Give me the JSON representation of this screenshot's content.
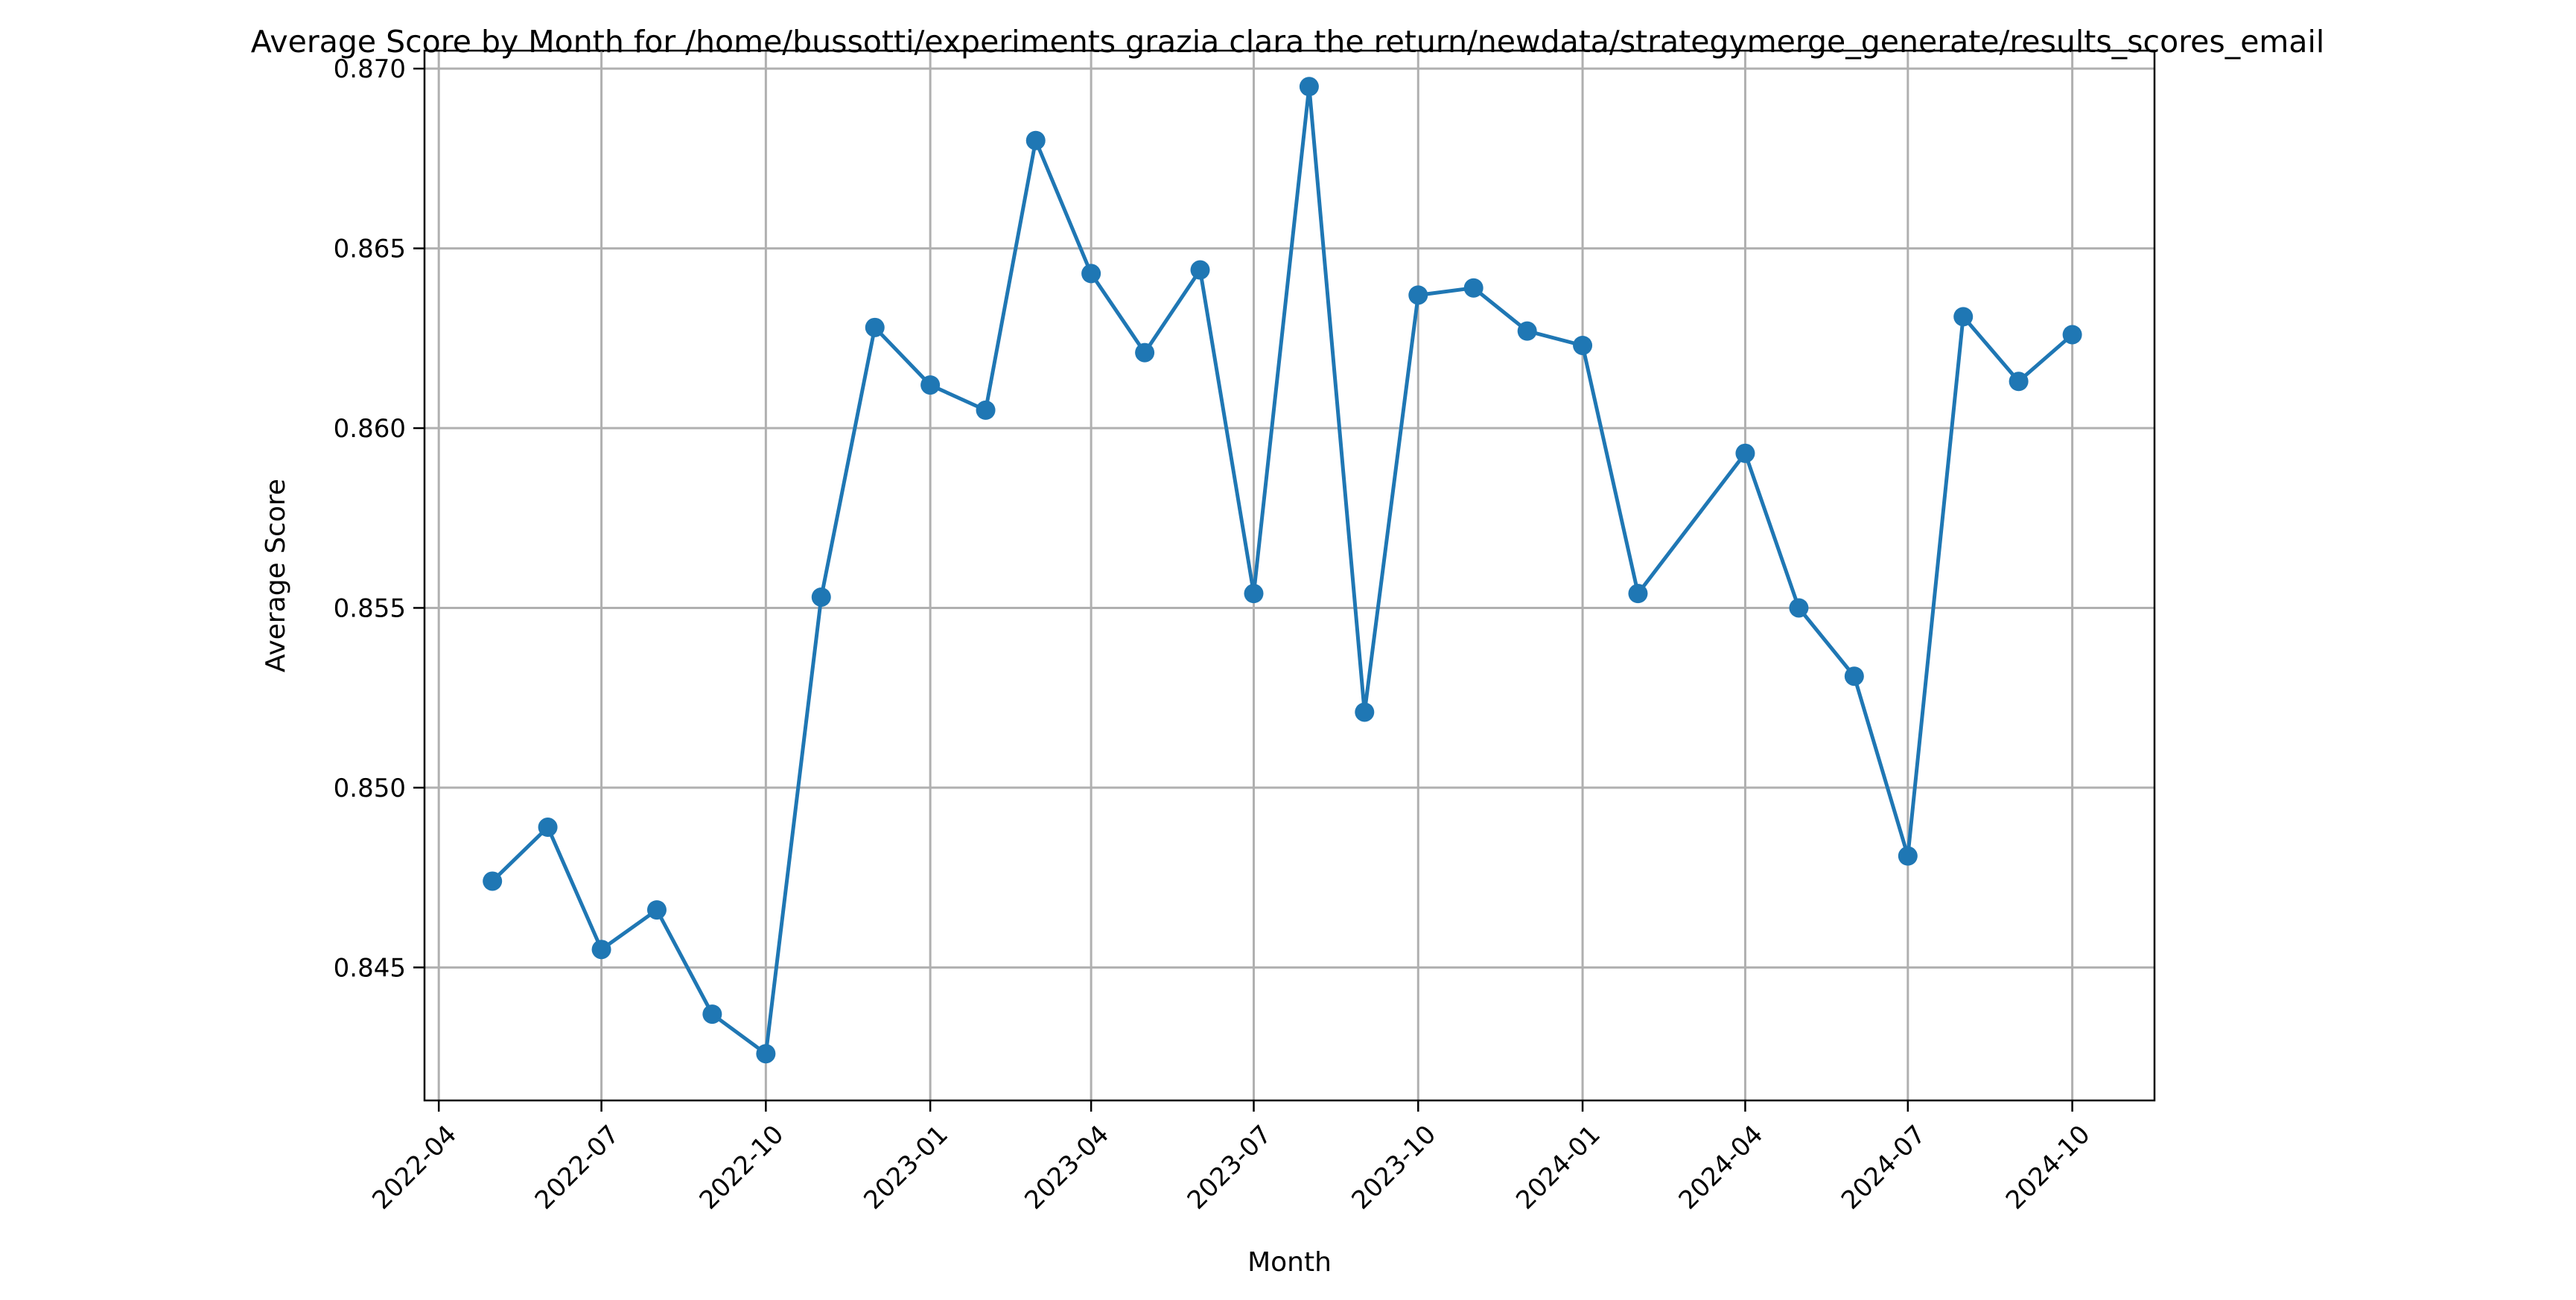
{
  "chart_data": {
    "type": "line",
    "title": "Average Score by Month for /home/bussotti/experiments grazia clara the return/newdata/strategymerge_generate/results_scores_email",
    "xlabel": "Month",
    "ylabel": "Average Score",
    "x_tick_labels": [
      "2022-04",
      "2022-07",
      "2022-10",
      "2023-01",
      "2023-04",
      "2023-07",
      "2023-10",
      "2024-01",
      "2024-04",
      "2024-07",
      "2024-10"
    ],
    "y_tick_labels": [
      "0.845",
      "0.850",
      "0.855",
      "0.860",
      "0.865",
      "0.870"
    ],
    "x_range": [
      "2022-03-24",
      "2024-11-16"
    ],
    "ylim": [
      0.8413,
      0.8705
    ],
    "grid": true,
    "marker": "circle",
    "color": "#1f77b4",
    "series": [
      {
        "x": [
          "2022-05-01",
          "2022-06-01",
          "2022-07-01",
          "2022-08-01",
          "2022-09-01",
          "2022-10-01",
          "2022-11-01",
          "2022-12-01",
          "2023-01-01",
          "2023-02-01",
          "2023-03-01",
          "2023-04-01",
          "2023-05-01",
          "2023-06-01",
          "2023-07-01",
          "2023-08-01",
          "2023-09-01",
          "2023-10-01",
          "2023-11-01",
          "2023-12-01",
          "2024-01-01",
          "2024-02-01",
          "2024-04-01",
          "2024-05-01",
          "2024-06-01",
          "2024-07-01",
          "2024-08-01",
          "2024-09-01",
          "2024-10-01"
        ],
        "values": [
          0.8474,
          0.8489,
          0.8455,
          0.8466,
          0.8437,
          0.8426,
          0.8553,
          0.8628,
          0.8612,
          0.8605,
          0.868,
          0.8643,
          0.8621,
          0.8644,
          0.8554,
          0.8695,
          0.8521,
          0.8637,
          0.8639,
          0.8627,
          0.8623,
          0.8554,
          0.8593,
          0.855,
          0.8531,
          0.8481,
          0.8631,
          0.8613,
          0.8626
        ]
      }
    ]
  }
}
